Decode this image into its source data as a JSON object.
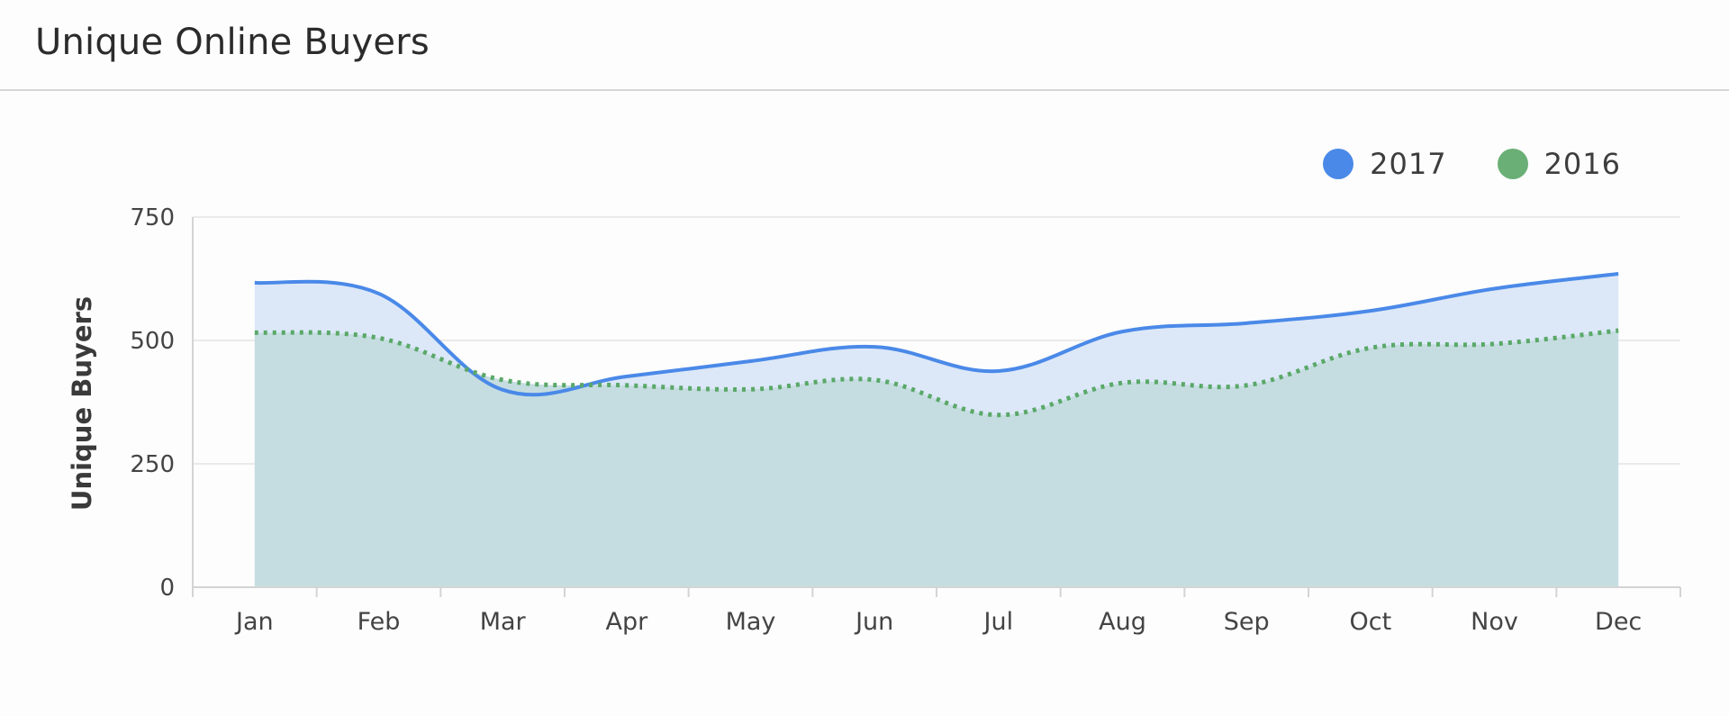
{
  "header": {
    "title": "Unique Online Buyers"
  },
  "legend": [
    {
      "label": "2017",
      "color": "#4a89e8"
    },
    {
      "label": "2016",
      "color": "#6aaf76"
    }
  ],
  "colors": {
    "series_2017_line": "#4a89e8",
    "series_2017_fill": "#dce8f8",
    "series_2016_line": "#5aa868",
    "series_2016_fill": "#c5dde1",
    "grid": "#e3e3e3",
    "axis": "#d4d4d4",
    "tick_text": "#444444"
  },
  "chart_data": {
    "type": "area",
    "title": "Unique Online Buyers",
    "xlabel": "",
    "ylabel": "Unique Buyers",
    "ylim": [
      0,
      750
    ],
    "yticks": [
      0,
      250,
      500,
      750
    ],
    "grid": true,
    "legend_position": "top-right",
    "categories": [
      "Jan",
      "Feb",
      "Mar",
      "Apr",
      "May",
      "Jun",
      "Jul",
      "Aug",
      "Sep",
      "Oct",
      "Nov",
      "Dec"
    ],
    "series": [
      {
        "name": "2017",
        "style": "solid",
        "values": [
          617,
          595,
          400,
          427,
          458,
          487,
          438,
          518,
          535,
          560,
          605,
          635
        ]
      },
      {
        "name": "2016",
        "style": "dotted",
        "values": [
          516,
          505,
          420,
          409,
          401,
          420,
          349,
          414,
          409,
          485,
          493,
          520
        ]
      }
    ]
  }
}
